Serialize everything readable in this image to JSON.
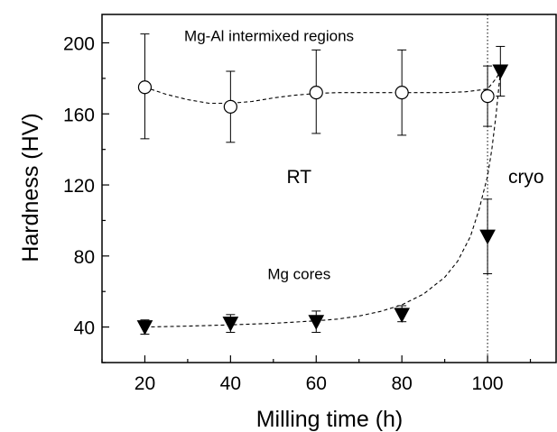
{
  "chart_data": {
    "type": "scatter",
    "title": "",
    "xlabel": "Milling time (h)",
    "ylabel": "Hardness (HV)",
    "xlim": [
      10,
      116
    ],
    "ylim": [
      20,
      216
    ],
    "x_ticks": [
      20,
      40,
      60,
      80,
      100
    ],
    "y_ticks": [
      40,
      80,
      120,
      160,
      200
    ],
    "grid": false,
    "frame": "box",
    "series": [
      {
        "marker": "open-circle",
        "color": "#000000",
        "points": [
          {
            "x": 20,
            "y": 175,
            "err_low": 146,
            "err_high": 205
          },
          {
            "x": 40,
            "y": 164,
            "err_low": 144,
            "err_high": 184
          },
          {
            "x": 60,
            "y": 172,
            "err_low": 149,
            "err_high": 196
          },
          {
            "x": 80,
            "y": 172,
            "err_low": 148,
            "err_high": 196
          },
          {
            "x": 100,
            "y": 170,
            "err_low": 153,
            "err_high": 187
          }
        ],
        "fit_curve": [
          [
            20,
            175
          ],
          [
            25,
            171
          ],
          [
            30,
            168
          ],
          [
            35,
            166
          ],
          [
            40,
            166
          ],
          [
            45,
            167
          ],
          [
            50,
            169
          ],
          [
            55,
            170.5
          ],
          [
            60,
            171.5
          ],
          [
            65,
            172
          ],
          [
            70,
            172
          ],
          [
            75,
            172
          ],
          [
            80,
            172
          ],
          [
            85,
            172
          ],
          [
            90,
            172
          ],
          [
            95,
            172.5
          ],
          [
            100,
            174
          ],
          [
            102,
            180
          ],
          [
            103,
            184
          ]
        ]
      },
      {
        "marker": "filled-triangle-down",
        "color": "#000000",
        "points": [
          {
            "x": 20,
            "y": 40,
            "err_low": 36,
            "err_high": 44
          },
          {
            "x": 40,
            "y": 42,
            "err_low": 37,
            "err_high": 47
          },
          {
            "x": 60,
            "y": 43,
            "err_low": 37,
            "err_high": 49
          },
          {
            "x": 80,
            "y": 47,
            "err_low": 43,
            "err_high": 52
          },
          {
            "x": 100,
            "y": 91,
            "err_low": 70,
            "err_high": 112
          },
          {
            "x": 103,
            "y": 184,
            "err_low": 170,
            "err_high": 198
          }
        ],
        "fit_curve": [
          [
            20,
            40
          ],
          [
            30,
            40.5
          ],
          [
            40,
            41.2
          ],
          [
            50,
            42.1
          ],
          [
            60,
            43.5
          ],
          [
            65,
            44.5
          ],
          [
            70,
            46.2
          ],
          [
            75,
            48.8
          ],
          [
            80,
            52.5
          ],
          [
            85,
            58.5
          ],
          [
            90,
            68
          ],
          [
            93,
            77
          ],
          [
            96,
            91
          ],
          [
            98,
            106
          ],
          [
            100,
            125
          ],
          [
            101,
            140
          ],
          [
            102,
            160
          ],
          [
            103,
            184
          ]
        ]
      }
    ],
    "vertical_line": {
      "x": 100,
      "style": "dotted"
    },
    "annotations": [
      {
        "text": "Mg-Al intermixed regions",
        "x": 49,
        "y": 201
      },
      {
        "text": "RT",
        "x": 56,
        "y": 121
      },
      {
        "text": "cryo",
        "x": 109,
        "y": 121
      },
      {
        "text": "Mg cores",
        "x": 56,
        "y": 67
      }
    ]
  }
}
